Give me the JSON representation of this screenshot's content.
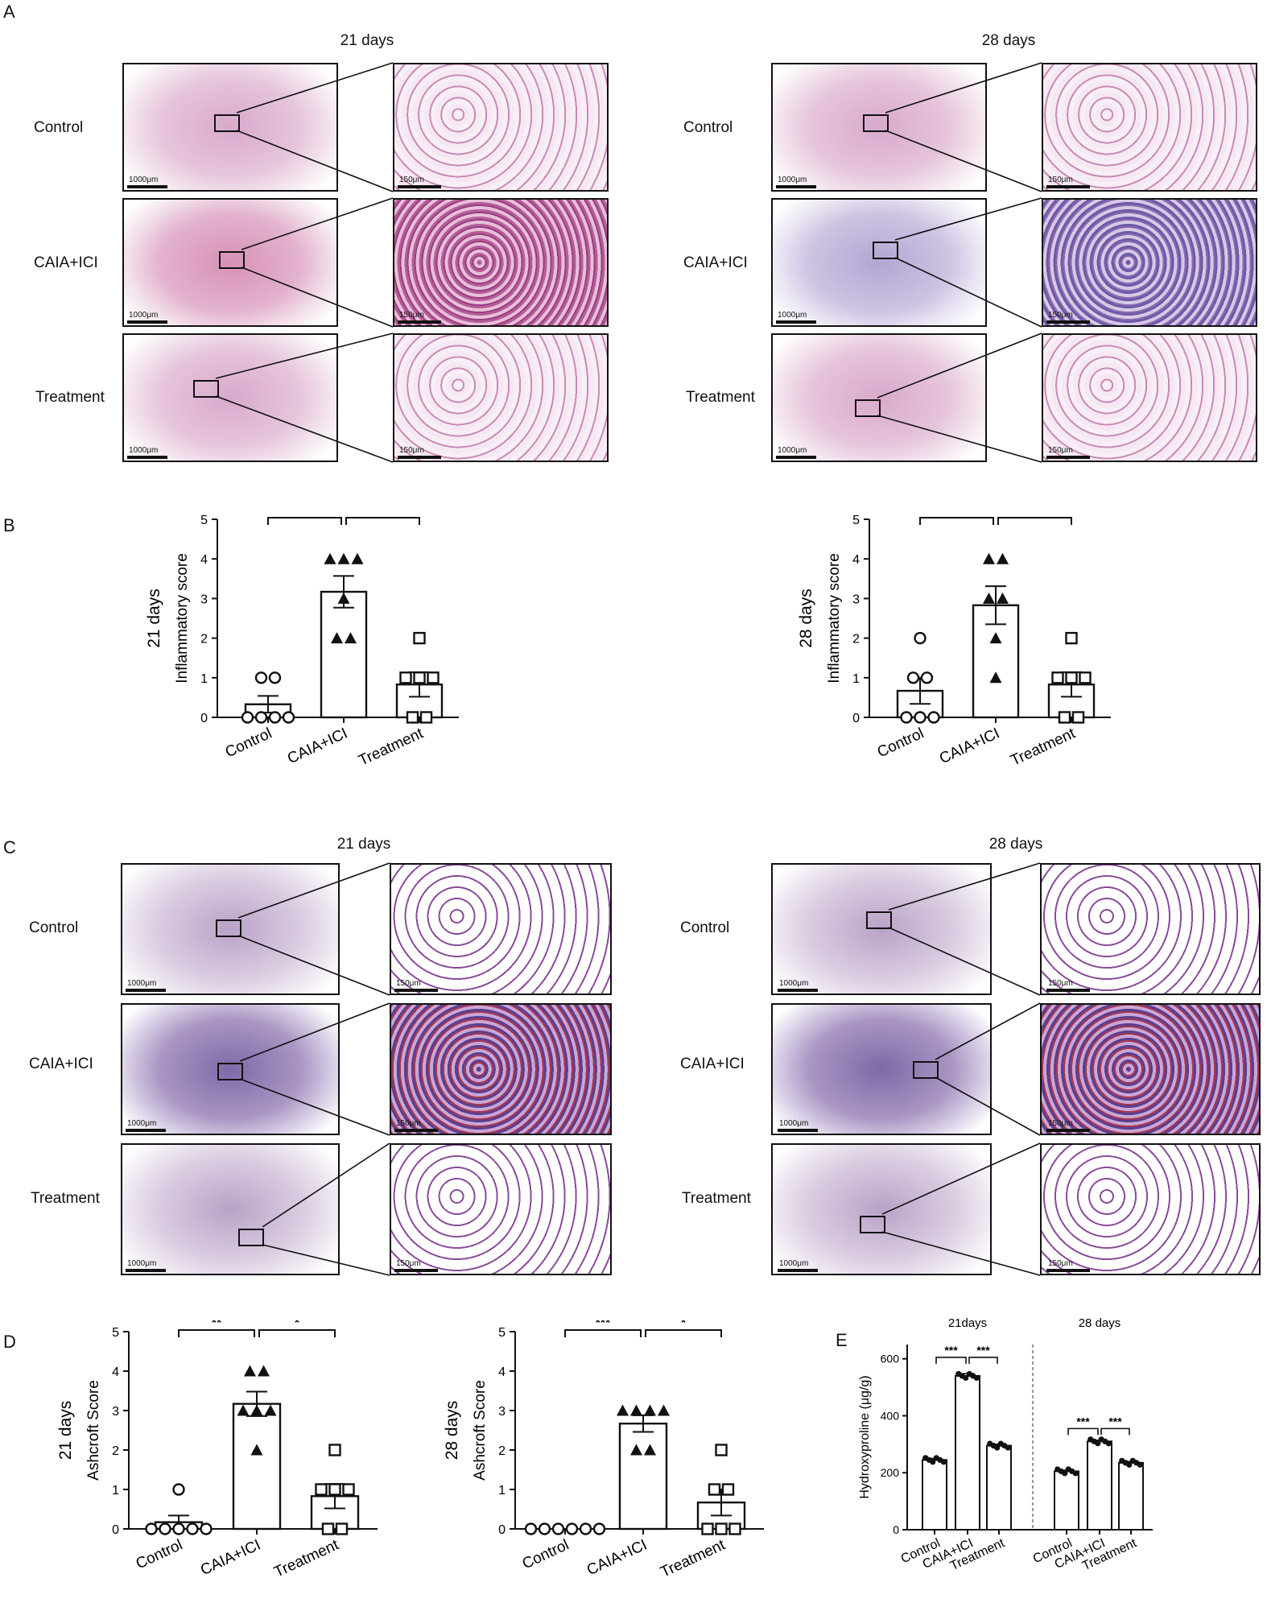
{
  "panels": {
    "A": {
      "letter": "A",
      "titles": [
        "21 days",
        "28 days"
      ]
    },
    "B": {
      "letter": "B"
    },
    "C": {
      "letter": "C",
      "titles": [
        "21 days",
        "28 days"
      ]
    },
    "D": {
      "letter": "D"
    },
    "E": {
      "letter": "E"
    }
  },
  "groups": [
    "Control",
    "CAIA+ICI",
    "Treatment"
  ],
  "scale": {
    "low": "1000μm",
    "high": "150μm"
  },
  "chart_data": [
    {
      "id": "B-21",
      "type": "bar",
      "categories": [
        "Control",
        "CAIA+ICI",
        "Treatment"
      ],
      "values": [
        0.33,
        3.17,
        0.83
      ],
      "errors": [
        0.21,
        0.4,
        0.31
      ],
      "points": [
        [
          0,
          0,
          0,
          0,
          1,
          1
        ],
        [
          2,
          2,
          4,
          4,
          4,
          3
        ],
        [
          0,
          0,
          1,
          1,
          1,
          2
        ]
      ],
      "markers": [
        "circle",
        "triangle",
        "square"
      ],
      "ylim": [
        0,
        5
      ],
      "yticks": [
        0,
        1,
        2,
        3,
        4,
        5
      ],
      "ylabel": "Inflammatory score",
      "row_label": "21 days",
      "significance": [
        {
          "from": 0,
          "to": 1,
          "label": "**"
        },
        {
          "from": 1,
          "to": 2,
          "label": "*"
        }
      ]
    },
    {
      "id": "B-28",
      "type": "bar",
      "categories": [
        "Control",
        "CAIA+ICI",
        "Treatment"
      ],
      "values": [
        0.67,
        2.83,
        0.83
      ],
      "errors": [
        0.33,
        0.48,
        0.31
      ],
      "points": [
        [
          0,
          0,
          0,
          1,
          1,
          2
        ],
        [
          1,
          2,
          3,
          4,
          4,
          3
        ],
        [
          0,
          0,
          1,
          1,
          1,
          2
        ]
      ],
      "markers": [
        "circle",
        "triangle",
        "square"
      ],
      "ylim": [
        0,
        5
      ],
      "yticks": [
        0,
        1,
        2,
        3,
        4,
        5
      ],
      "ylabel": "Inflammatory score",
      "row_label": "28 days",
      "significance": [
        {
          "from": 0,
          "to": 1,
          "label": "*"
        },
        {
          "from": 1,
          "to": 2,
          "label": "*"
        }
      ]
    },
    {
      "id": "D-21",
      "type": "bar",
      "categories": [
        "Control",
        "CAIA+ICI",
        "Treatment"
      ],
      "values": [
        0.17,
        3.17,
        0.83
      ],
      "errors": [
        0.17,
        0.31,
        0.31
      ],
      "points": [
        [
          0,
          0,
          0,
          0,
          0,
          1
        ],
        [
          2,
          3,
          3,
          4,
          4,
          3
        ],
        [
          0,
          0,
          1,
          1,
          1,
          2
        ]
      ],
      "markers": [
        "circle",
        "triangle",
        "square"
      ],
      "ylim": [
        0,
        5
      ],
      "yticks": [
        0,
        1,
        2,
        3,
        4,
        5
      ],
      "ylabel": "Ashcroft Score",
      "row_label": "21 days",
      "significance": [
        {
          "from": 0,
          "to": 1,
          "label": "**"
        },
        {
          "from": 1,
          "to": 2,
          "label": "*"
        }
      ]
    },
    {
      "id": "D-28",
      "type": "bar",
      "categories": [
        "Control",
        "CAIA+ICI",
        "Treatment"
      ],
      "values": [
        0.0,
        2.67,
        0.67
      ],
      "errors": [
        0.0,
        0.21,
        0.33
      ],
      "points": [
        [
          0,
          0,
          0,
          0,
          0,
          0
        ],
        [
          2,
          2,
          3,
          3,
          3,
          3
        ],
        [
          0,
          0,
          0,
          1,
          1,
          2
        ]
      ],
      "markers": [
        "circle",
        "triangle",
        "square"
      ],
      "ylim": [
        0,
        5
      ],
      "yticks": [
        0,
        1,
        2,
        3,
        4,
        5
      ],
      "ylabel": "Ashcroft Score",
      "row_label": "28 days",
      "significance": [
        {
          "from": 0,
          "to": 1,
          "label": "***"
        },
        {
          "from": 1,
          "to": 2,
          "label": "*"
        }
      ]
    },
    {
      "id": "E",
      "type": "bar",
      "categories": [
        "Control",
        "CAIA+ICI",
        "Treatment",
        "Control",
        "CAIA+ICI",
        "Treatment"
      ],
      "values": [
        245,
        540,
        295,
        205,
        310,
        235
      ],
      "errors": [
        5,
        8,
        5,
        4,
        4,
        4
      ],
      "ylim": [
        0,
        650
      ],
      "yticks": [
        0,
        200,
        400,
        600
      ],
      "ylabel": "Hydroxyproline (μg/g)",
      "group_labels": [
        "21days",
        "28 days"
      ],
      "significance": [
        {
          "from": 0,
          "to": 1,
          "label": "***"
        },
        {
          "from": 1,
          "to": 2,
          "label": "***"
        },
        {
          "from": 3,
          "to": 4,
          "label": "***"
        },
        {
          "from": 4,
          "to": 5,
          "label": "***"
        }
      ]
    }
  ]
}
